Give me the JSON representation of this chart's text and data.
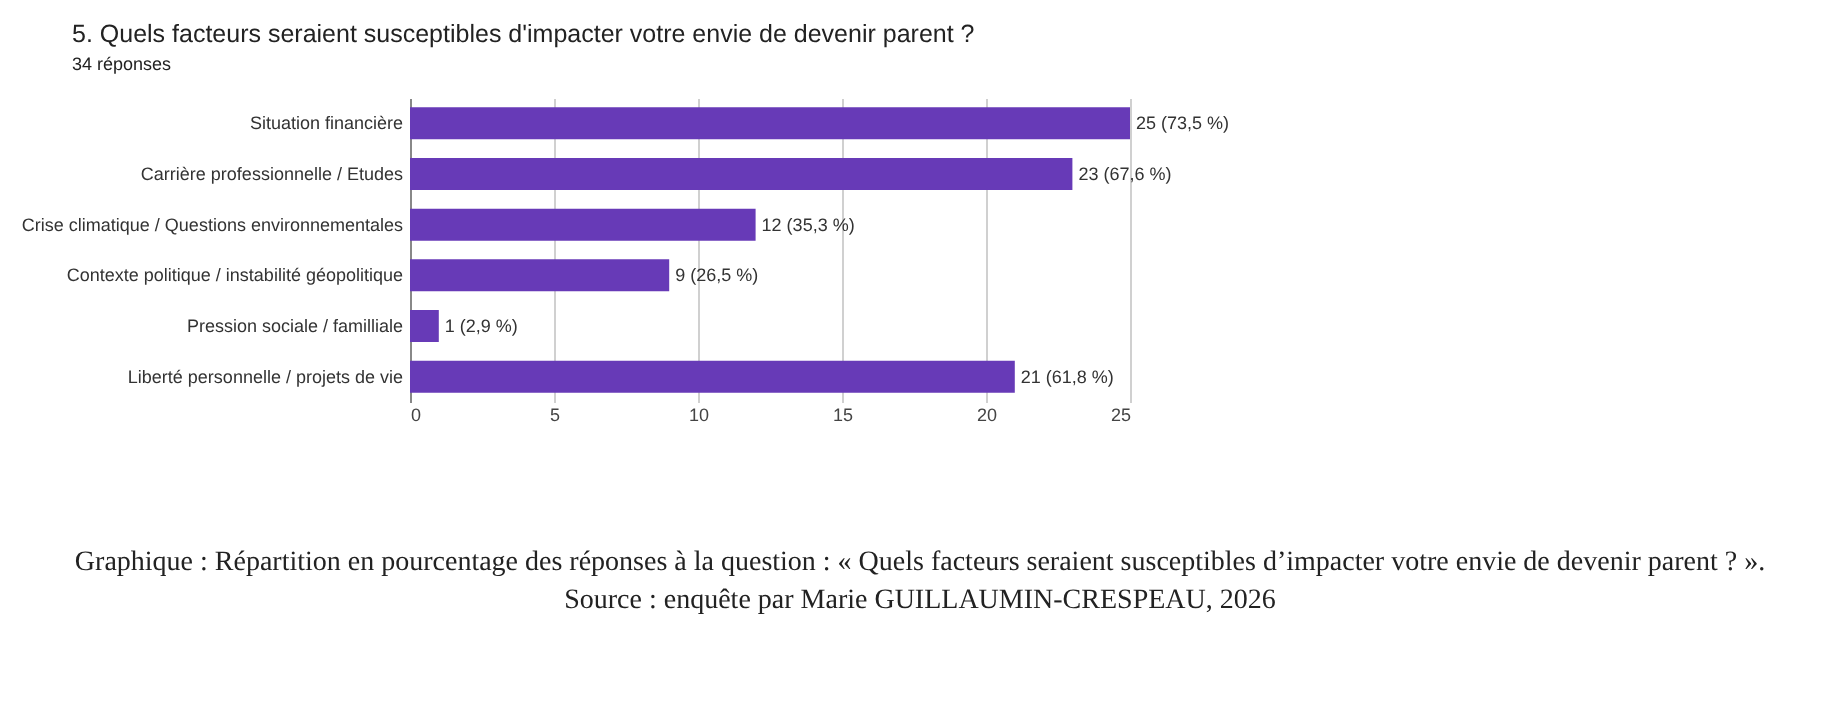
{
  "chart_data": {
    "type": "bar",
    "orientation": "horizontal",
    "title": "5. Quels facteurs seraient susceptibles d'impacter votre envie de devenir parent ?",
    "subtitle": "34 réponses",
    "categories": [
      "Situation financière",
      "Carrière professionnelle / Etudes",
      "Crise climatique / Questions environnementales",
      "Contexte politique / instabilité géopolitique",
      "Pression sociale / familliale",
      "Liberté personnelle / projets de vie"
    ],
    "series": [
      {
        "color": "#673ab7",
        "values": [
          25,
          23,
          12,
          9,
          1,
          21
        ],
        "value_labels": [
          "25 (73,5 %)",
          "23 (67,6 %)",
          "12 (35,3 %)",
          "9 (26,5 %)",
          "1 (2,9 %)",
          "21 (61,8 %)"
        ]
      }
    ],
    "xlim": [
      0,
      25
    ],
    "xticks": [
      0,
      5,
      10,
      15,
      20,
      25
    ],
    "grid": "x",
    "legend": false,
    "annotations": [
      "Graphique : Répartition en pourcentage des réponses à la question : « Quels facteurs seraient susceptibles d’impacter votre envie de devenir parent ? ».",
      "Source : enquête par Marie GUILLAUMIN-CRESPEAU, 2026"
    ]
  }
}
